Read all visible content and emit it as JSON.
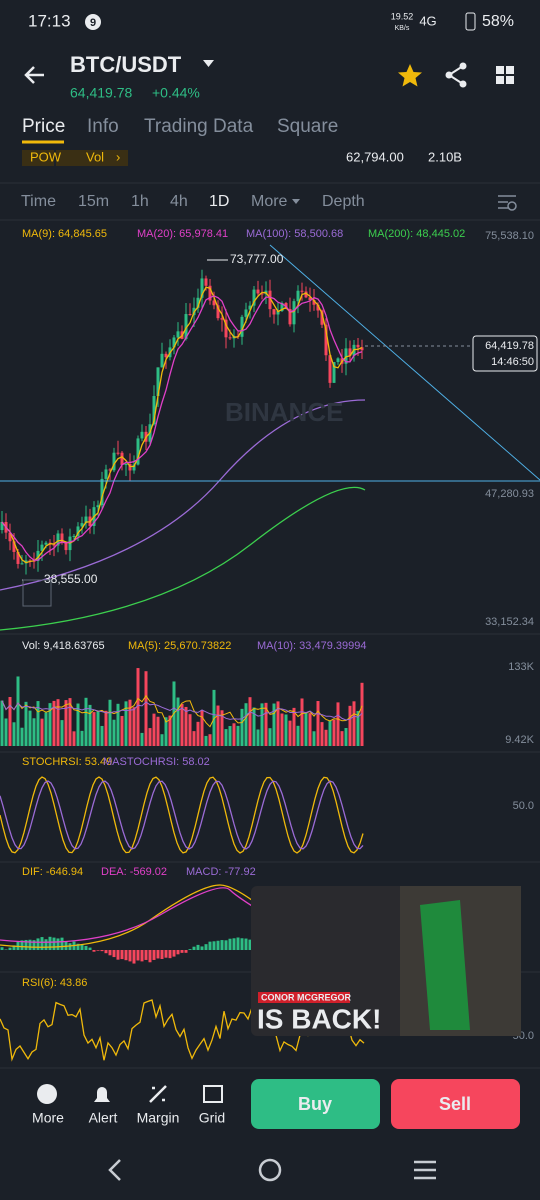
{
  "status_bar": {
    "time": "17:13",
    "badge": "9",
    "speed": "19.52",
    "speed_unit": "KB/s",
    "network": "4G",
    "battery": "58%"
  },
  "header": {
    "pair": "BTC/USDT",
    "price": "64,419.78",
    "change": "+0.44%"
  },
  "tabs": [
    "Price",
    "Info",
    "Trading Data",
    "Square"
  ],
  "tags": [
    "POW",
    "Vol"
  ],
  "stats": [
    "62,794.00",
    "2.10B"
  ],
  "intervals": [
    "Time",
    "15m",
    "1h",
    "4h",
    "1D",
    "More",
    "Depth"
  ],
  "main_chart": {
    "ma_labels": [
      "MA(9): 64,845.65",
      "MA(20): 65,978.41",
      "MA(100): 58,500.68",
      "MA(200): 48,445.02"
    ],
    "axis_labels": [
      "75,538.10",
      "47,280.93",
      "33,152.34"
    ],
    "high": "73,777.00",
    "low": "38,555.00",
    "current_price": "64,419.78",
    "countdown": "14:46:50",
    "watermark": "BINANCE"
  },
  "volume": {
    "labels": [
      "Vol: 9,418.63765",
      "MA(5): 25,670.73822",
      "MA(10): 33,479.39994"
    ],
    "axis_labels": [
      "133K",
      "9.42K"
    ]
  },
  "stochrsi": {
    "labels": [
      "STOCHRSI: 53.49",
      "MASTOCHRSI: 58.02"
    ],
    "axis_label": "50.0"
  },
  "macd": {
    "labels": [
      "DIF: -646.94",
      "DEA: -569.02",
      "MACD: -77.92"
    ]
  },
  "rsi": {
    "label": "RSI(6): 43.86",
    "axis_label": "50.0"
  },
  "ad": {
    "line1": "CONOR MCGREGOR",
    "line2": "IS BACK!"
  },
  "actions": [
    "More",
    "Alert",
    "Margin",
    "Grid"
  ],
  "buttons": {
    "buy": "Buy",
    "sell": "Sell"
  }
}
